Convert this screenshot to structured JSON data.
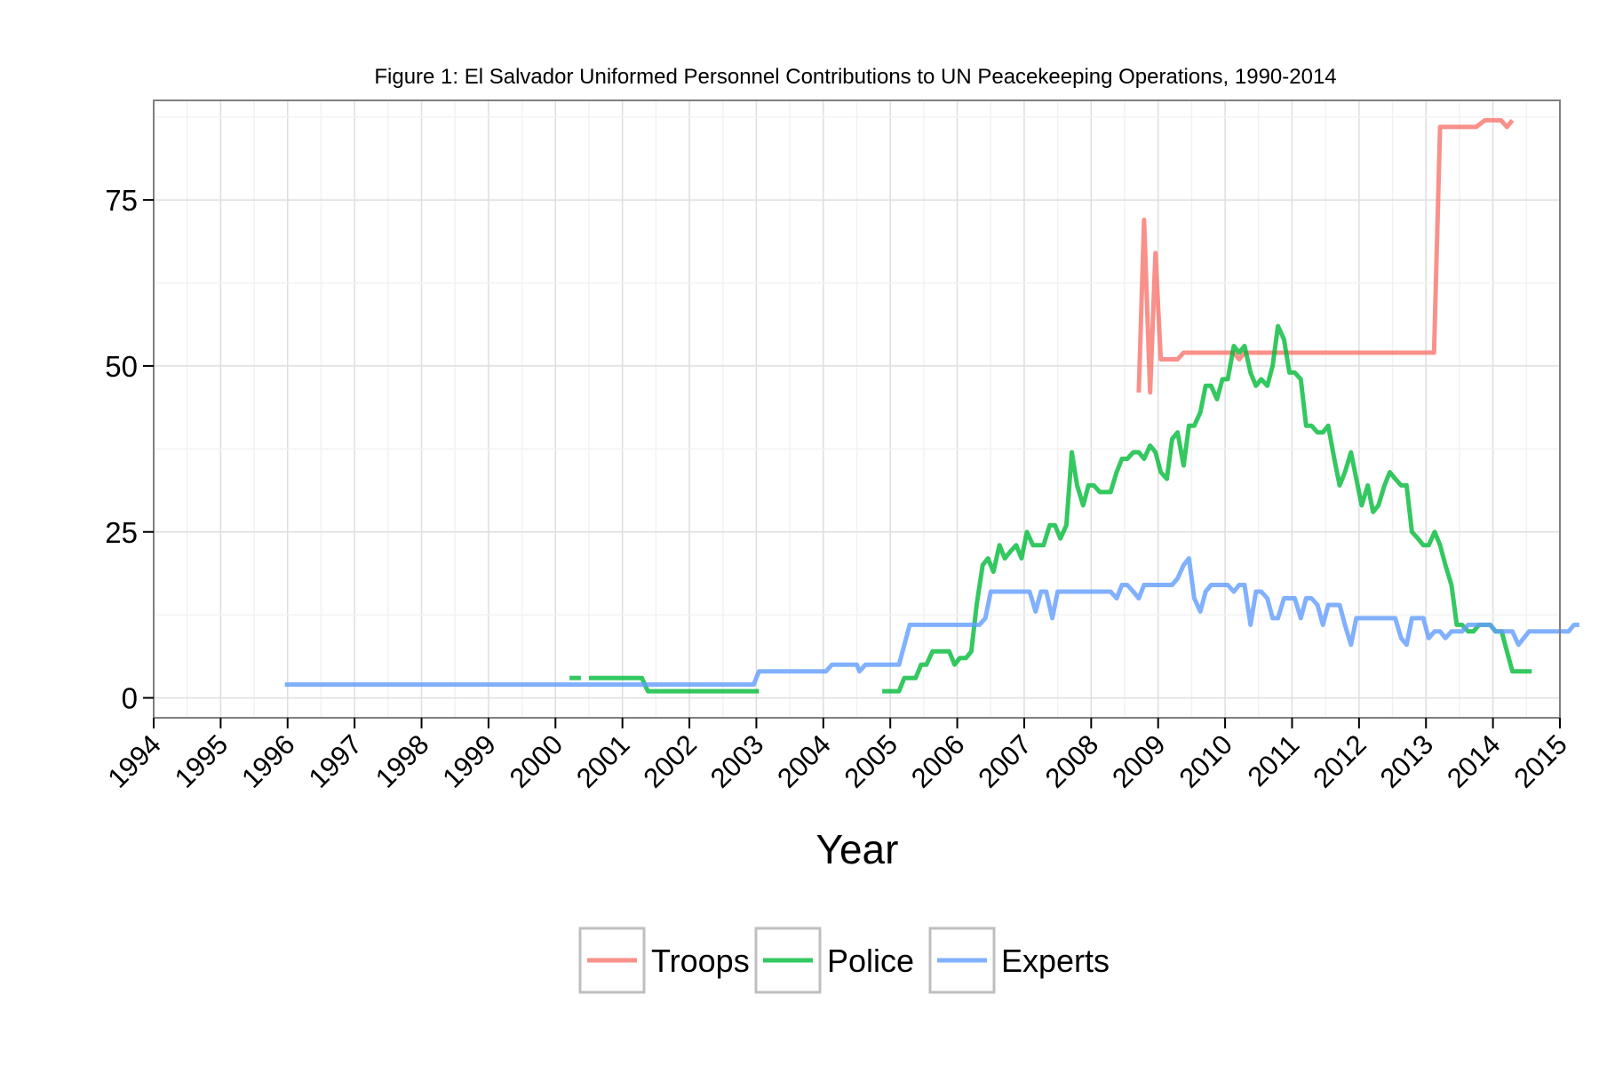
{
  "chart_data": {
    "type": "line",
    "title": "Figure 1: El Salvador Uniformed Personnel Contributions to UN Peacekeeping Operations, 1990-2014",
    "xlabel": "Year",
    "ylabel": "",
    "xlim": [
      1994,
      2015
    ],
    "ylim": [
      -3,
      90
    ],
    "x_ticks": [
      "1994",
      "1995",
      "1996",
      "1997",
      "1998",
      "1999",
      "2000",
      "2001",
      "2002",
      "2003",
      "2004",
      "2005",
      "2006",
      "2007",
      "2008",
      "2009",
      "2010",
      "2011",
      "2012",
      "2013",
      "2014",
      "2015"
    ],
    "y_ticks": [
      "0",
      "25",
      "50",
      "75"
    ],
    "grid": true,
    "legend_position": "bottom",
    "series": [
      {
        "name": "Troops",
        "color": "#F8766D",
        "points": [
          [
            2008.71,
            46
          ],
          [
            2008.79,
            72
          ],
          [
            2008.88,
            46
          ],
          [
            2008.96,
            67
          ],
          [
            2009.04,
            51
          ],
          [
            2009.13,
            51
          ],
          [
            2009.21,
            51
          ],
          [
            2009.29,
            51
          ],
          [
            2009.38,
            52
          ],
          [
            2009.46,
            52
          ],
          [
            2009.54,
            52
          ],
          [
            2009.63,
            52
          ],
          [
            2009.71,
            52
          ],
          [
            2009.79,
            52
          ],
          [
            2009.88,
            52
          ],
          [
            2009.96,
            52
          ],
          [
            2010.04,
            52
          ],
          [
            2010.13,
            52
          ],
          [
            2010.21,
            51
          ],
          [
            2010.29,
            52
          ],
          [
            2010.5,
            52
          ],
          [
            2010.75,
            52
          ],
          [
            2011.0,
            52
          ],
          [
            2011.5,
            52
          ],
          [
            2012.0,
            52
          ],
          [
            2012.5,
            52
          ],
          [
            2013.0,
            52
          ],
          [
            2013.12,
            52
          ],
          [
            2013.21,
            86
          ],
          [
            2013.5,
            86
          ],
          [
            2013.75,
            86
          ],
          [
            2013.88,
            87
          ],
          [
            2014.0,
            87
          ],
          [
            2014.12,
            87
          ],
          [
            2014.21,
            86
          ],
          [
            2014.29,
            87
          ]
        ]
      },
      {
        "name": "Police",
        "color": "#00BA38",
        "segments": [
          [
            [
              2000.21,
              3
            ],
            [
              2000.38,
              3
            ]
          ],
          [
            [
              2000.5,
              3
            ],
            [
              2000.75,
              3
            ],
            [
              2001.0,
              3
            ],
            [
              2001.21,
              3
            ],
            [
              2001.29,
              3
            ],
            [
              2001.38,
              1
            ],
            [
              2001.75,
              1
            ],
            [
              2002.25,
              1
            ],
            [
              2002.75,
              1
            ],
            [
              2003.04,
              1
            ]
          ],
          [
            [
              2004.88,
              1
            ],
            [
              2005.04,
              1
            ],
            [
              2005.13,
              1
            ],
            [
              2005.21,
              3
            ],
            [
              2005.38,
              3
            ],
            [
              2005.46,
              5
            ],
            [
              2005.54,
              5
            ],
            [
              2005.63,
              7
            ],
            [
              2005.71,
              7
            ],
            [
              2005.79,
              7
            ],
            [
              2005.88,
              7
            ],
            [
              2005.96,
              5
            ],
            [
              2006.04,
              6
            ],
            [
              2006.13,
              6
            ],
            [
              2006.21,
              7
            ],
            [
              2006.29,
              14
            ],
            [
              2006.38,
              20
            ],
            [
              2006.46,
              21
            ],
            [
              2006.54,
              19
            ],
            [
              2006.63,
              23
            ],
            [
              2006.71,
              21
            ],
            [
              2006.79,
              22
            ],
            [
              2006.88,
              23
            ],
            [
              2006.96,
              21
            ],
            [
              2007.04,
              25
            ],
            [
              2007.13,
              23
            ],
            [
              2007.21,
              23
            ],
            [
              2007.29,
              23
            ],
            [
              2007.38,
              26
            ],
            [
              2007.46,
              26
            ],
            [
              2007.54,
              24
            ],
            [
              2007.63,
              26
            ],
            [
              2007.71,
              37
            ],
            [
              2007.79,
              32
            ],
            [
              2007.88,
              29
            ],
            [
              2007.96,
              32
            ],
            [
              2008.04,
              32
            ],
            [
              2008.13,
              31
            ],
            [
              2008.21,
              31
            ],
            [
              2008.29,
              31
            ],
            [
              2008.38,
              34
            ],
            [
              2008.46,
              36
            ],
            [
              2008.54,
              36
            ],
            [
              2008.63,
              37
            ],
            [
              2008.71,
              37
            ],
            [
              2008.79,
              36
            ],
            [
              2008.88,
              38
            ],
            [
              2008.96,
              37
            ],
            [
              2009.04,
              34
            ],
            [
              2009.13,
              33
            ],
            [
              2009.21,
              39
            ],
            [
              2009.29,
              40
            ],
            [
              2009.38,
              35
            ],
            [
              2009.46,
              41
            ],
            [
              2009.54,
              41
            ],
            [
              2009.63,
              43
            ],
            [
              2009.71,
              47
            ],
            [
              2009.79,
              47
            ],
            [
              2009.88,
              45
            ],
            [
              2009.96,
              48
            ],
            [
              2010.04,
              48
            ],
            [
              2010.13,
              53
            ],
            [
              2010.21,
              52
            ],
            [
              2010.29,
              53
            ],
            [
              2010.38,
              49
            ],
            [
              2010.46,
              47
            ],
            [
              2010.54,
              48
            ],
            [
              2010.63,
              47
            ],
            [
              2010.71,
              50
            ],
            [
              2010.79,
              56
            ],
            [
              2010.88,
              54
            ],
            [
              2010.96,
              49
            ],
            [
              2011.04,
              49
            ],
            [
              2011.13,
              48
            ],
            [
              2011.21,
              41
            ],
            [
              2011.29,
              41
            ],
            [
              2011.38,
              40
            ],
            [
              2011.46,
              40
            ],
            [
              2011.54,
              41
            ],
            [
              2011.63,
              36
            ],
            [
              2011.71,
              32
            ],
            [
              2011.79,
              34
            ],
            [
              2011.88,
              37
            ],
            [
              2011.96,
              33
            ],
            [
              2012.04,
              29
            ],
            [
              2012.13,
              32
            ],
            [
              2012.21,
              28
            ],
            [
              2012.29,
              29
            ],
            [
              2012.38,
              32
            ],
            [
              2012.46,
              34
            ],
            [
              2012.54,
              33
            ],
            [
              2012.63,
              32
            ],
            [
              2012.71,
              32
            ],
            [
              2012.79,
              25
            ],
            [
              2012.88,
              24
            ],
            [
              2012.96,
              23
            ],
            [
              2013.04,
              23
            ],
            [
              2013.13,
              25
            ],
            [
              2013.21,
              23
            ],
            [
              2013.29,
              20
            ],
            [
              2013.38,
              17
            ],
            [
              2013.46,
              11
            ],
            [
              2013.54,
              11
            ],
            [
              2013.63,
              10
            ],
            [
              2013.71,
              10
            ],
            [
              2013.79,
              11
            ],
            [
              2013.88,
              11
            ],
            [
              2013.96,
              11
            ],
            [
              2014.04,
              10
            ],
            [
              2014.13,
              10
            ],
            [
              2014.21,
              7
            ],
            [
              2014.29,
              4
            ],
            [
              2014.38,
              4
            ],
            [
              2014.5,
              4
            ],
            [
              2014.58,
              4
            ]
          ]
        ]
      },
      {
        "name": "Experts",
        "color": "#619CFF",
        "points": [
          [
            1995.96,
            2
          ],
          [
            1996.5,
            2
          ],
          [
            1997.0,
            2
          ],
          [
            1997.5,
            2
          ],
          [
            1998.0,
            2
          ],
          [
            1998.5,
            2
          ],
          [
            1999.0,
            2
          ],
          [
            1999.5,
            2
          ],
          [
            2000.0,
            2
          ],
          [
            2000.5,
            2
          ],
          [
            2001.0,
            2
          ],
          [
            2001.5,
            2
          ],
          [
            2002.0,
            2
          ],
          [
            2002.5,
            2
          ],
          [
            2002.96,
            2
          ],
          [
            2003.04,
            4
          ],
          [
            2003.5,
            4
          ],
          [
            2004.0,
            4
          ],
          [
            2004.04,
            4
          ],
          [
            2004.13,
            5
          ],
          [
            2004.5,
            5
          ],
          [
            2004.54,
            4
          ],
          [
            2004.63,
            5
          ],
          [
            2005.0,
            5
          ],
          [
            2005.13,
            5
          ],
          [
            2005.29,
            11
          ],
          [
            2005.5,
            11
          ],
          [
            2005.75,
            11
          ],
          [
            2006.0,
            11
          ],
          [
            2006.25,
            11
          ],
          [
            2006.33,
            11
          ],
          [
            2006.42,
            12
          ],
          [
            2006.5,
            16
          ],
          [
            2006.75,
            16
          ],
          [
            2007.0,
            16
          ],
          [
            2007.08,
            16
          ],
          [
            2007.17,
            13
          ],
          [
            2007.25,
            16
          ],
          [
            2007.33,
            16
          ],
          [
            2007.42,
            12
          ],
          [
            2007.5,
            16
          ],
          [
            2008.0,
            16
          ],
          [
            2008.21,
            16
          ],
          [
            2008.29,
            16
          ],
          [
            2008.38,
            15
          ],
          [
            2008.46,
            17
          ],
          [
            2008.54,
            17
          ],
          [
            2008.63,
            16
          ],
          [
            2008.71,
            15
          ],
          [
            2008.79,
            17
          ],
          [
            2009.0,
            17
          ],
          [
            2009.21,
            17
          ],
          [
            2009.29,
            18
          ],
          [
            2009.38,
            20
          ],
          [
            2009.46,
            21
          ],
          [
            2009.54,
            15
          ],
          [
            2009.63,
            13
          ],
          [
            2009.71,
            16
          ],
          [
            2009.79,
            17
          ],
          [
            2009.88,
            17
          ],
          [
            2010.04,
            17
          ],
          [
            2010.13,
            16
          ],
          [
            2010.21,
            17
          ],
          [
            2010.29,
            17
          ],
          [
            2010.38,
            11
          ],
          [
            2010.46,
            16
          ],
          [
            2010.54,
            16
          ],
          [
            2010.63,
            15
          ],
          [
            2010.71,
            12
          ],
          [
            2010.79,
            12
          ],
          [
            2010.88,
            15
          ],
          [
            2010.96,
            15
          ],
          [
            2011.04,
            15
          ],
          [
            2011.13,
            12
          ],
          [
            2011.21,
            15
          ],
          [
            2011.29,
            15
          ],
          [
            2011.38,
            14
          ],
          [
            2011.46,
            11
          ],
          [
            2011.54,
            14
          ],
          [
            2011.63,
            14
          ],
          [
            2011.71,
            14
          ],
          [
            2011.79,
            11
          ],
          [
            2011.88,
            8
          ],
          [
            2011.96,
            12
          ],
          [
            2012.04,
            12
          ],
          [
            2012.5,
            12
          ],
          [
            2012.54,
            12
          ],
          [
            2012.63,
            9
          ],
          [
            2012.71,
            8
          ],
          [
            2012.79,
            12
          ],
          [
            2012.88,
            12
          ],
          [
            2012.96,
            12
          ],
          [
            2013.04,
            9
          ],
          [
            2013.13,
            10
          ],
          [
            2013.21,
            10
          ],
          [
            2013.29,
            9
          ],
          [
            2013.38,
            10
          ],
          [
            2013.46,
            10
          ],
          [
            2013.54,
            10
          ],
          [
            2013.63,
            11
          ],
          [
            2013.71,
            11
          ],
          [
            2013.79,
            11
          ],
          [
            2013.88,
            11
          ],
          [
            2013.96,
            11
          ],
          [
            2014.04,
            10
          ],
          [
            2014.13,
            10
          ],
          [
            2014.29,
            10
          ],
          [
            2014.38,
            8
          ],
          [
            2014.46,
            9
          ],
          [
            2014.54,
            10
          ],
          [
            2014.63,
            10
          ],
          [
            2014.71,
            10
          ],
          [
            2014.79,
            10
          ],
          [
            2014.88,
            10
          ],
          [
            2014.96,
            10
          ],
          [
            2015.04,
            10
          ],
          [
            2015.13,
            10
          ],
          [
            2015.21,
            11
          ],
          [
            2015.29,
            11
          ]
        ]
      }
    ]
  }
}
